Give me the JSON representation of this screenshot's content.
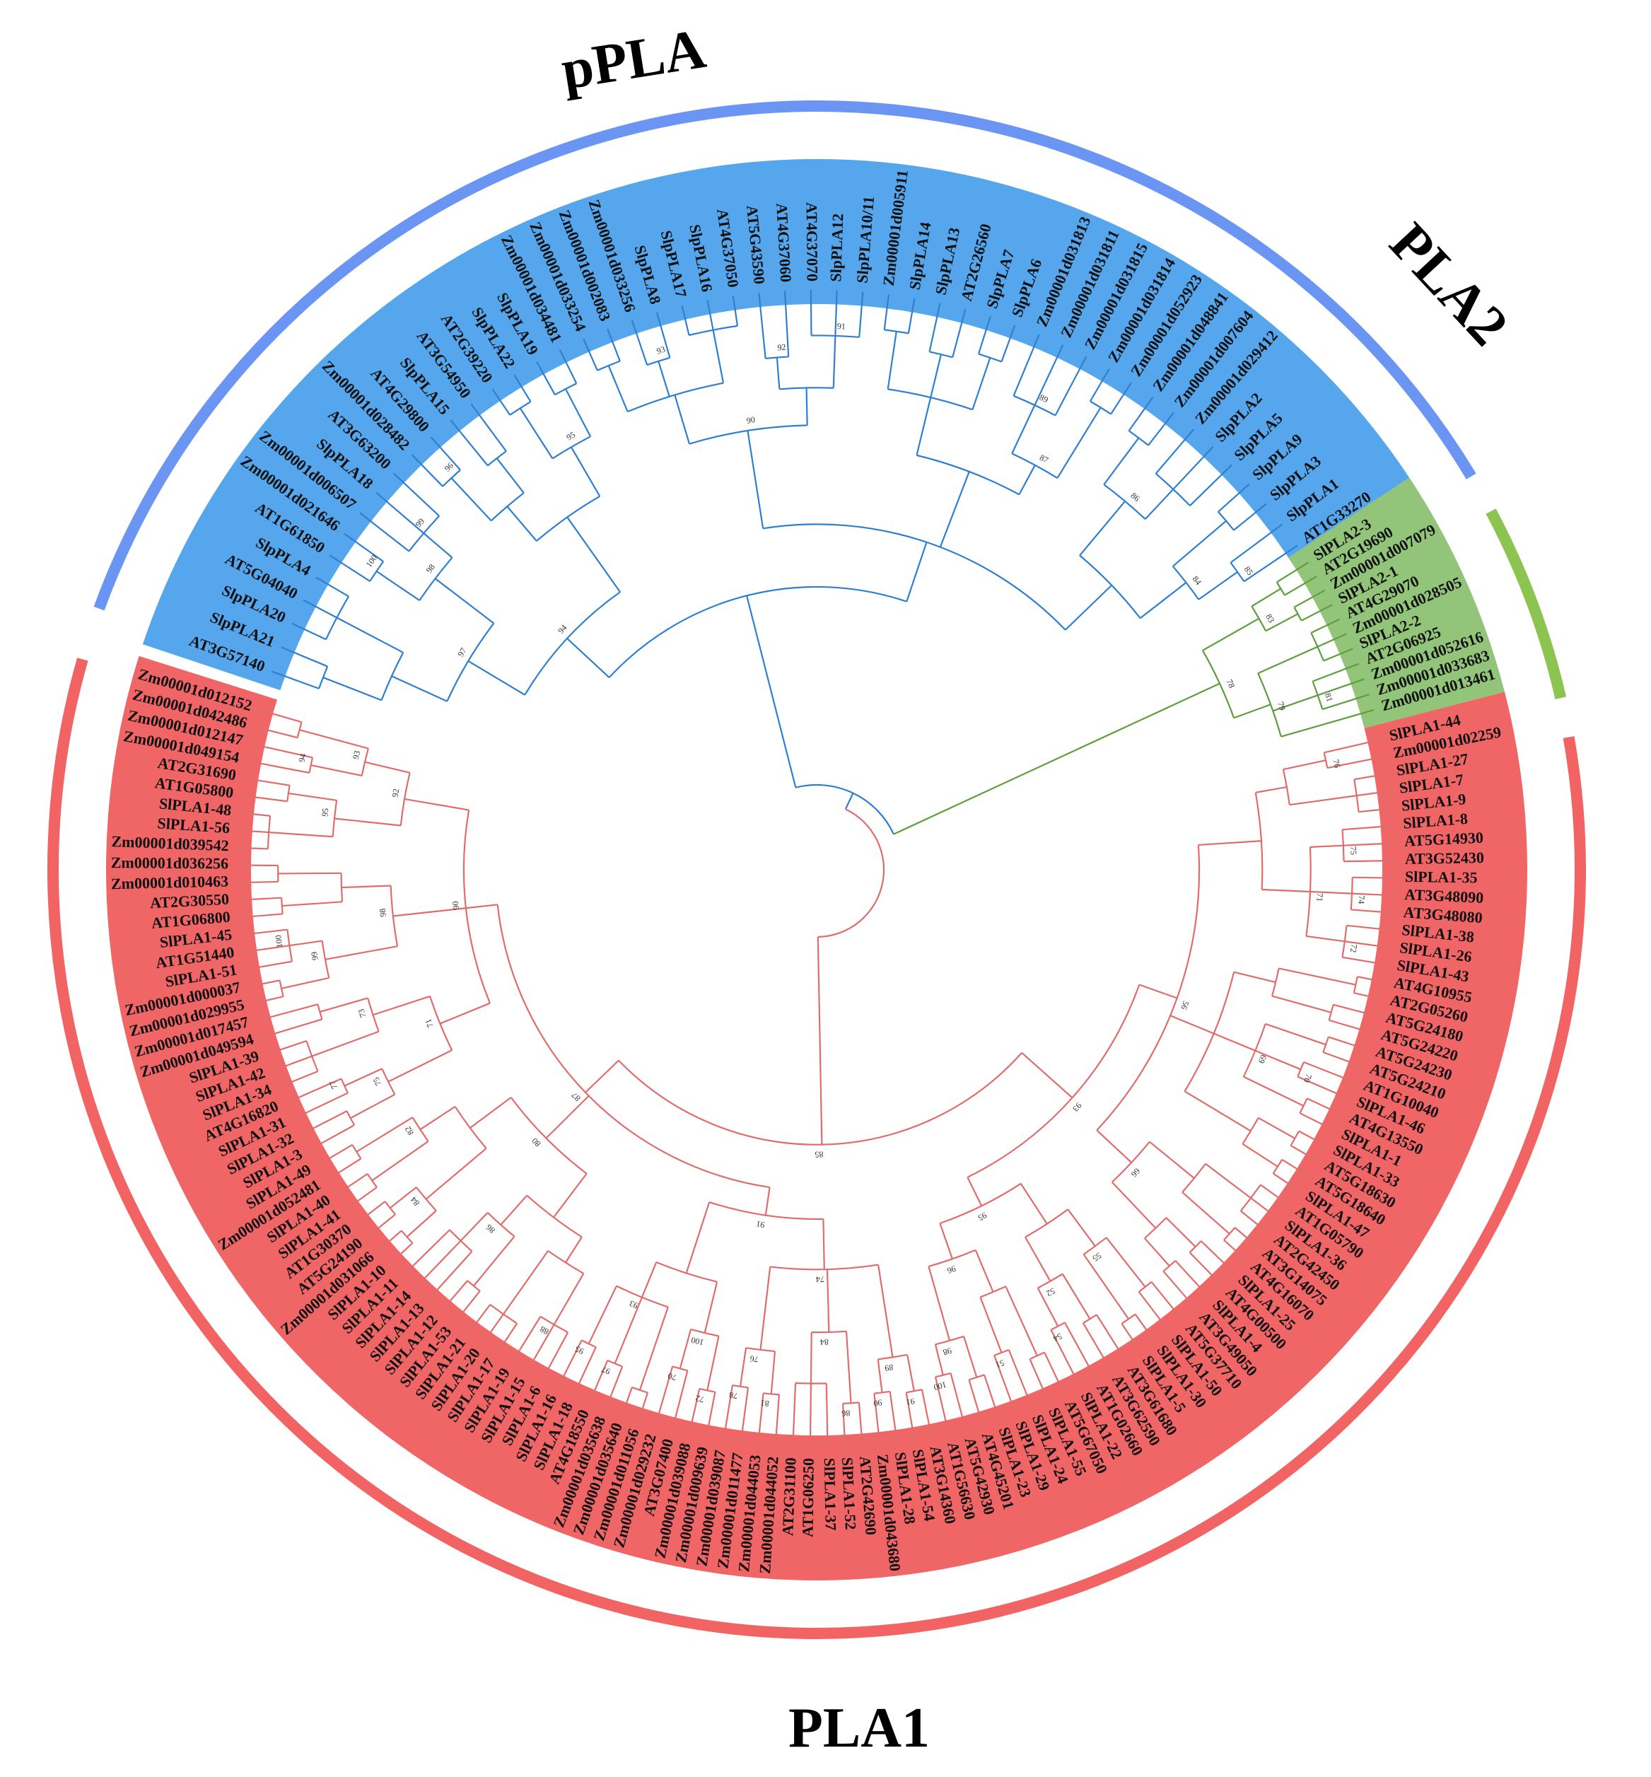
{
  "groups": [
    {
      "key": "ppla",
      "title": "pPLA",
      "band_color": "#56a6ee",
      "arc_color": "#6b95f3",
      "branch_color": "#2f7fd0",
      "leaves": [
        "AT3G57140",
        "SlpPLA21",
        "SlpPLA20",
        "AT5G04040",
        "SlpPLA4",
        "AT1G61850",
        "Zm00001d021646",
        "Zm00001d006507",
        "SlpPLA18",
        "AT3G63200",
        "Zm00001d028482",
        "AT4G29800",
        "SlpPLA15",
        "AT3G54950",
        "AT2G39220",
        "SlpPLA22",
        "SlpPLA19",
        "Zm00001d034481",
        "Zm00001d033254",
        "Zm00001d002083",
        "Zm00001d033256",
        "SlpPLA8",
        "SlpPLA17",
        "SlpPLA16",
        "AT4G37050",
        "AT5G43590",
        "AT4G37060",
        "AT4G37070",
        "SlpPLA12",
        "SlpPLA10/11",
        "Zm00001d005911",
        "SlpPLA14",
        "SlpPLA13",
        "AT2G26560",
        "SlpPLA7",
        "SlpPLA6",
        "Zm00001d031813",
        "Zm00001d031811",
        "Zm00001d031815",
        "Zm00001d031814",
        "Zm00001d052923",
        "Zm00001d048841",
        "Zm00001d007604",
        "Zm00001d029412",
        "SlpPLA2",
        "SlpPLA5",
        "SlpPLA9",
        "SlpPLA3",
        "SlpPLA1",
        "AT1G33270"
      ]
    },
    {
      "key": "pla2",
      "title": "PLA2",
      "band_color": "#92c47a",
      "arc_color": "#8bc550",
      "branch_color": "#5f9e3c",
      "leaves": [
        "SlPLA2-3",
        "AT2G19690",
        "Zm00001d007079",
        "SlPLA2-1",
        "AT4G29070",
        "Zm00001d028505",
        "SlPLA2-2",
        "AT2G06925",
        "Zm00001d052616",
        "Zm00001d033683",
        "Zm00001d013461"
      ]
    },
    {
      "key": "pla1",
      "title": "PLA1",
      "band_color": "#f06666",
      "arc_color": "#f26464",
      "branch_color": "#e06c6c",
      "leaves": [
        "SlPLA1-44",
        "Zm00001d02259",
        "SlPLA1-27",
        "SlPLA1-7",
        "SlPLA1-9",
        "SlPLA1-8",
        "AT5G14930",
        "AT3G52430",
        "SlPLA1-35",
        "AT3G48090",
        "AT3G48080",
        "SlPLA1-38",
        "SlPLA1-26",
        "SlPLA1-43",
        "AT4G10955",
        "AT2G05260",
        "AT5G24180",
        "AT5G24220",
        "AT5G24230",
        "AT5G24210",
        "AT1G10040",
        "SlPLA1-46",
        "AT4G13550",
        "SlPLA1-1",
        "SlPLA1-33",
        "AT5G18630",
        "AT5G18640",
        "SlPLA1-47",
        "AT1G05790",
        "SlPLA1-36",
        "AT2G42450",
        "AT3G14075",
        "AT4G16070",
        "SlPLA1-25",
        "AT4G00500",
        "SlPLA1-4",
        "AT3G49050",
        "AT5G37710",
        "SlPLA1-50",
        "SlPLA1-30",
        "SlPLA1-5",
        "AT3G61680",
        "AT3G62590",
        "AT1G02660",
        "SlPLA1-22",
        "AT5G67050",
        "SlPLA1-55",
        "SlPLA1-24",
        "SlPLA1-29",
        "SlPLA1-23",
        "AT4G45201",
        "AT5G42930",
        "AT1G56630",
        "AT3G14360",
        "SlPLA1-54",
        "SlPLA1-28",
        "Zm00001d043680",
        "AT2G42690",
        "SlPLA1-52",
        "SlPLA1-37",
        "AT1G06250",
        "AT2G31100",
        "Zm00001d044052",
        "Zm00001d044053",
        "Zm00001d011477",
        "Zm00001d039087",
        "Zm00001d009639",
        "Zm00001d039088",
        "AT3G07400",
        "Zm00001d029232",
        "Zm00001d011056",
        "Zm00001d035640",
        "Zm00001d035638",
        "AT4G18550",
        "SlPLA1-18",
        "SlPLA1-16",
        "SlPLA1-6",
        "SlPLA1-15",
        "SlPLA1-19",
        "SlPLA1-17",
        "SlPLA1-20",
        "SlPLA1-21",
        "SlPLA1-53",
        "SlPLA1-12",
        "SlPLA1-13",
        "SlPLA1-14",
        "SlPLA1-11",
        "SlPLA1-10",
        "Zm00001d031066",
        "AT5G24190",
        "AT1G30370",
        "SlPLA1-41",
        "SlPLA1-40",
        "Zm00001d052481",
        "SlPLA1-49",
        "SlPLA1-3",
        "SlPLA1-32",
        "SlPLA1-31",
        "AT4G16820",
        "SlPLA1-34",
        "SlPLA1-42",
        "SlPLA1-39",
        "Zm00001d049594",
        "Zm00001d017457",
        "Zm00001d029955",
        "Zm00001d000037",
        "SlPLA1-51",
        "AT1G51440",
        "SlPLA1-45",
        "AT1G06800",
        "AT2G30550",
        "Zm00001d010463",
        "Zm00001d036256",
        "Zm00001d039542",
        "SlPLA1-56",
        "SlPLA1-48",
        "AT1G05800",
        "AT2G31690",
        "Zm00001d049154",
        "Zm00001d012147",
        "Zm00001d042486",
        "Zm00001d012152"
      ]
    }
  ],
  "bootstrap": [
    "100",
    "99",
    "98",
    "97",
    "96",
    "95",
    "94",
    "93",
    "92",
    "91",
    "90",
    "89",
    "87",
    "86",
    "85",
    "84",
    "83",
    "81",
    "79",
    "78",
    "76",
    "75",
    "74",
    "72",
    "71",
    "70",
    "69",
    "66",
    "56",
    "55",
    "54",
    "52",
    "51",
    "100",
    "98",
    "96",
    "95",
    "93",
    "91",
    "90",
    "89",
    "86",
    "84",
    "81",
    "78",
    "76",
    "74",
    "72",
    "70",
    "100",
    "97",
    "95",
    "93",
    "91",
    "88",
    "86",
    "84",
    "82",
    "80",
    "77",
    "75",
    "73",
    "71",
    "100",
    "99",
    "98",
    "95",
    "94",
    "93",
    "92",
    "90",
    "87",
    "85",
    "84",
    "83",
    "79",
    "76",
    "74",
    "71",
    "100",
    "96",
    "94",
    "91",
    "90",
    "88",
    "86",
    "84",
    "81",
    "79",
    "77",
    "75",
    "72",
    "70"
  ]
}
